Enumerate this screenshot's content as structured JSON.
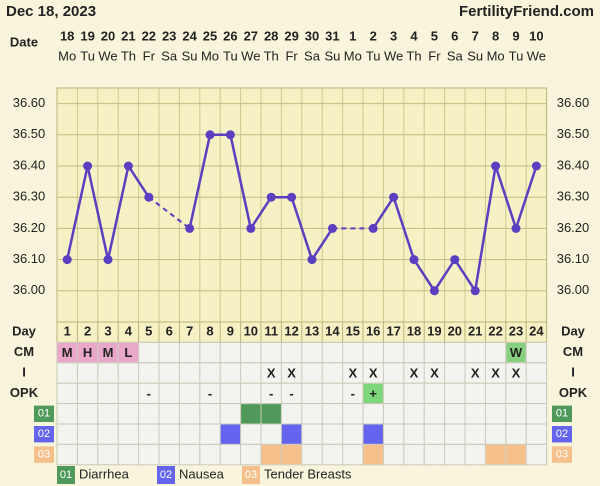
{
  "header": {
    "date": "Dec 18, 2023",
    "site": "FertilityFriend.com"
  },
  "chart_data": {
    "type": "line",
    "row_label": "Date",
    "categories": [
      "18",
      "19",
      "20",
      "21",
      "22",
      "23",
      "24",
      "25",
      "26",
      "27",
      "28",
      "29",
      "30",
      "31",
      "1",
      "2",
      "3",
      "4",
      "5",
      "6",
      "7",
      "8",
      "9",
      "10"
    ],
    "weekdays": [
      "Mo",
      "Tu",
      "We",
      "Th",
      "Fr",
      "Sa",
      "Su",
      "Mo",
      "Tu",
      "We",
      "Th",
      "Fr",
      "Sa",
      "Su",
      "Mo",
      "Tu",
      "We",
      "Th",
      "Fr",
      "Sa",
      "Su",
      "Mo",
      "Tu",
      "We"
    ],
    "values": [
      36.1,
      36.4,
      36.1,
      36.4,
      36.3,
      null,
      36.2,
      36.5,
      36.5,
      36.2,
      36.3,
      36.3,
      36.1,
      36.2,
      null,
      36.2,
      36.3,
      36.1,
      36.0,
      36.1,
      36.0,
      36.4,
      36.2,
      36.4
    ],
    "color": "#5a3fc0",
    "ylim": [
      35.9,
      36.65
    ],
    "yticks": [
      {
        "value": 36.0,
        "label": "36.00"
      },
      {
        "value": 36.1,
        "label": "36.10"
      },
      {
        "value": 36.2,
        "label": "36.20"
      },
      {
        "value": 36.3,
        "label": "36.30"
      },
      {
        "value": 36.4,
        "label": "36.40"
      },
      {
        "value": 36.5,
        "label": "36.50"
      },
      {
        "value": 36.6,
        "label": "36.60"
      }
    ],
    "grid": true
  },
  "table": {
    "day_label": "Day",
    "days": [
      1,
      2,
      3,
      4,
      5,
      6,
      7,
      8,
      9,
      10,
      11,
      12,
      13,
      14,
      15,
      16,
      17,
      18,
      19,
      20,
      21,
      22,
      23,
      24
    ],
    "rows": [
      {
        "label": "CM",
        "cells": [
          "M",
          "H",
          "M",
          "L",
          null,
          null,
          null,
          null,
          null,
          null,
          null,
          null,
          null,
          null,
          null,
          null,
          null,
          null,
          null,
          null,
          null,
          null,
          "W",
          null
        ],
        "fills": {
          "M": "#eaa8c8",
          "H": "#eaa8c8",
          "L": "#eaa8c8",
          "W": "#86cf7e"
        }
      },
      {
        "label": "I",
        "cells": [
          null,
          null,
          null,
          null,
          null,
          null,
          null,
          null,
          null,
          null,
          "X",
          "X",
          null,
          null,
          "X",
          "X",
          null,
          "X",
          "X",
          null,
          "X",
          "X",
          "X",
          null
        ],
        "fills": {}
      },
      {
        "label": "OPK",
        "cells": [
          null,
          null,
          null,
          null,
          "-",
          null,
          null,
          "-",
          null,
          null,
          "-",
          "-",
          null,
          null,
          "-",
          "+",
          null,
          null,
          null,
          null,
          null,
          null,
          null,
          null
        ],
        "fills": {
          "+": "#7dd67a"
        }
      }
    ],
    "symptoms": [
      {
        "label": "01",
        "name": "Diarrhea",
        "color": "#4f9a5a",
        "marked": [
          false,
          false,
          false,
          false,
          false,
          false,
          false,
          false,
          false,
          true,
          true,
          false,
          false,
          false,
          false,
          false,
          false,
          false,
          false,
          false,
          false,
          false,
          false,
          false
        ]
      },
      {
        "label": "02",
        "name": "Nausea",
        "color": "#6464ee",
        "marked": [
          false,
          false,
          false,
          false,
          false,
          false,
          false,
          false,
          true,
          false,
          false,
          true,
          false,
          false,
          false,
          true,
          false,
          false,
          false,
          false,
          false,
          false,
          false,
          false
        ]
      },
      {
        "label": "03",
        "name": "Tender Breasts",
        "color": "#f6c08c",
        "marked": [
          false,
          false,
          false,
          false,
          false,
          false,
          false,
          false,
          false,
          false,
          true,
          true,
          false,
          false,
          false,
          true,
          false,
          false,
          false,
          false,
          false,
          true,
          true,
          false
        ]
      }
    ]
  }
}
